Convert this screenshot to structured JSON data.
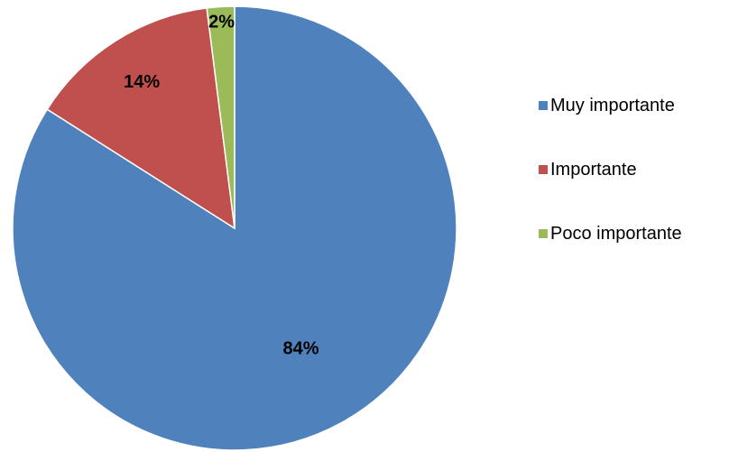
{
  "chart_data": {
    "type": "pie",
    "categories": [
      "Muy importante",
      "Importante",
      "Poco importante"
    ],
    "values": [
      84,
      14,
      2
    ],
    "data_labels": [
      "84%",
      "14%",
      "2%"
    ],
    "colors": [
      "#4F81BD",
      "#C0504D",
      "#9BBB59"
    ],
    "start_angle": "12 o'clock",
    "direction": "clockwise",
    "legend_position": "right",
    "title": ""
  }
}
